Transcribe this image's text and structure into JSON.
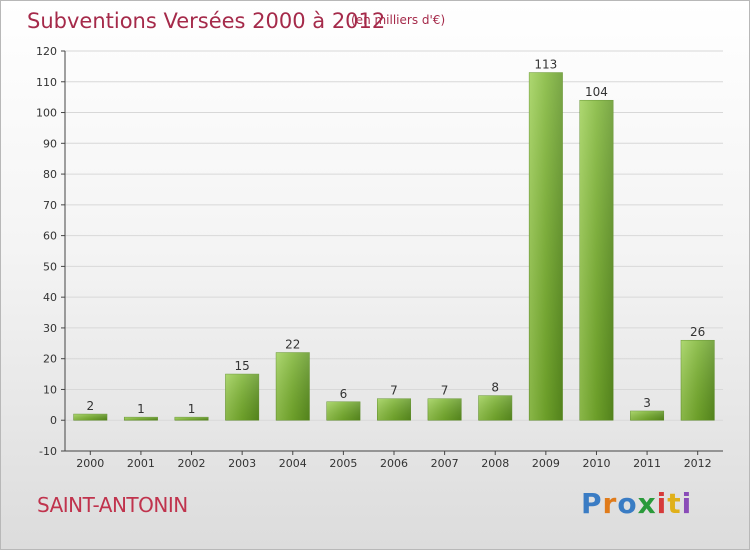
{
  "header": {
    "title": "Subventions Versées 2000 à 2012",
    "unit": "(en milliers d'€)"
  },
  "footer": {
    "commune": "SAINT-ANTONIN",
    "logo_letters": [
      "P",
      "r",
      "o",
      "x",
      "i",
      "t",
      "i"
    ],
    "logo_colors": [
      "#3a7cc4",
      "#e07b1a",
      "#3a7cc4",
      "#2a9a3a",
      "#d63a3a",
      "#e0b01a",
      "#8a4cb8"
    ]
  },
  "chart_data": {
    "type": "bar",
    "categories": [
      "2000",
      "2001",
      "2002",
      "2003",
      "2004",
      "2005",
      "2006",
      "2007",
      "2008",
      "2009",
      "2010",
      "2011",
      "2012"
    ],
    "values": [
      2,
      1,
      1,
      15,
      22,
      6,
      7,
      7,
      8,
      113,
      104,
      3,
      26
    ],
    "value_labels": [
      "2",
      "1",
      "1",
      "15",
      "22",
      "6",
      "7",
      "7",
      "8",
      "113",
      "104",
      "3",
      "26"
    ],
    "y_ticks": [
      "-10",
      "0",
      "10",
      "20",
      "30",
      "40",
      "50",
      "60",
      "70",
      "80",
      "90",
      "100",
      "110",
      "120"
    ],
    "ylim": [
      -10,
      120
    ],
    "grid": true,
    "bar_color": "#7ab32e"
  }
}
